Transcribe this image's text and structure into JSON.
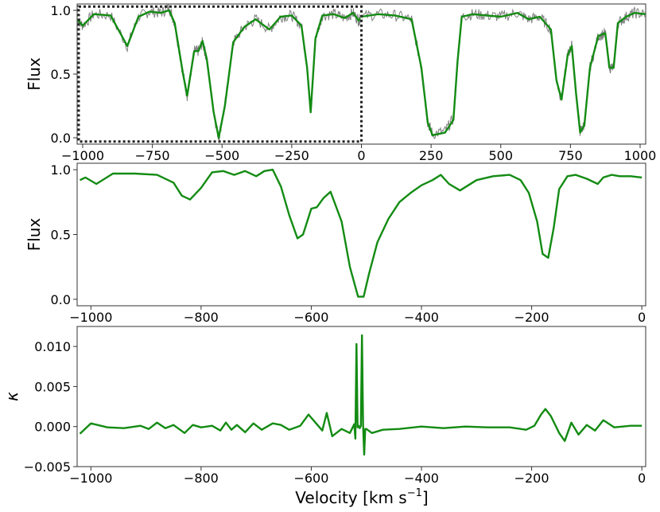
{
  "chart_data": [
    {
      "type": "line",
      "panel": "top",
      "ylabel": "Flux",
      "xlabel": "",
      "xlim": [
        -1020,
        1020
      ],
      "ylim": [
        -0.05,
        1.05
      ],
      "x_ticks": [
        -1000,
        -750,
        -500,
        -250,
        0,
        250,
        500,
        750,
        1000
      ],
      "x_tick_labels": [
        "−1000",
        "−750",
        "−500",
        "−250",
        "0",
        "250",
        "500",
        "750",
        "1000"
      ],
      "y_ticks": [
        0.0,
        0.5,
        1.0
      ],
      "y_tick_labels": [
        "0.0",
        "0.5",
        "1.0"
      ],
      "gap_at": 0,
      "highlight_box": {
        "x": [
          -1020,
          0
        ],
        "y": [
          -0.03,
          1.03
        ],
        "style": "dotted"
      },
      "series": [
        {
          "role": "data",
          "color": "#808080",
          "x": [
            -1020,
            -1000,
            -960,
            -900,
            -840,
            -800,
            -760,
            -720,
            -690,
            -670,
            -640,
            -625,
            -600,
            -585,
            -570,
            -555,
            -530,
            -512,
            -490,
            -460,
            -420,
            -380,
            -330,
            -290,
            -250,
            -215,
            -195,
            -182,
            -165,
            -140,
            -100,
            -60,
            -30,
            -10,
            0,
            60,
            120,
            180,
            215,
            238,
            255,
            300,
            330,
            345,
            360,
            400,
            450,
            500,
            560,
            600,
            640,
            680,
            700,
            718,
            740,
            755,
            770,
            785,
            800,
            820,
            850,
            875,
            890,
            905,
            920,
            950,
            980,
            1020
          ],
          "y": [
            0.93,
            0.88,
            0.97,
            0.96,
            0.72,
            0.95,
            0.99,
            0.98,
            1.02,
            0.9,
            0.5,
            0.33,
            0.68,
            0.68,
            0.75,
            0.62,
            0.2,
            0.0,
            0.25,
            0.75,
            0.87,
            0.93,
            0.85,
            0.95,
            0.96,
            0.88,
            0.55,
            0.2,
            0.78,
            0.96,
            0.97,
            0.94,
            0.98,
            0.92,
            0.95,
            0.97,
            0.96,
            0.93,
            0.55,
            0.12,
            0.03,
            0.05,
            0.15,
            0.6,
            0.95,
            0.97,
            0.96,
            0.95,
            0.98,
            0.93,
            0.95,
            0.85,
            0.45,
            0.3,
            0.65,
            0.72,
            0.35,
            0.05,
            0.1,
            0.55,
            0.8,
            0.82,
            0.55,
            0.55,
            0.9,
            0.95,
            0.98,
            0.97
          ]
        },
        {
          "role": "model",
          "color": "#138b13",
          "x": [
            -1020,
            -1000,
            -960,
            -900,
            -840,
            -800,
            -760,
            -720,
            -690,
            -670,
            -640,
            -625,
            -600,
            -585,
            -570,
            -555,
            -530,
            -512,
            -490,
            -460,
            -420,
            -380,
            -330,
            -290,
            -250,
            -215,
            -195,
            -182,
            -165,
            -140,
            -100,
            -60,
            -30,
            -10,
            0,
            60,
            120,
            180,
            215,
            238,
            255,
            300,
            330,
            345,
            360,
            400,
            450,
            500,
            560,
            600,
            640,
            680,
            700,
            718,
            740,
            755,
            770,
            785,
            800,
            820,
            850,
            875,
            890,
            905,
            920,
            950,
            980,
            1020
          ],
          "y": [
            0.93,
            0.88,
            0.97,
            0.96,
            0.72,
            0.95,
            0.99,
            0.98,
            1.0,
            0.9,
            0.5,
            0.33,
            0.68,
            0.68,
            0.76,
            0.62,
            0.2,
            0.0,
            0.25,
            0.75,
            0.87,
            0.93,
            0.85,
            0.95,
            0.96,
            0.88,
            0.55,
            0.2,
            0.78,
            0.96,
            0.97,
            0.94,
            0.98,
            0.92,
            0.95,
            0.97,
            0.96,
            0.93,
            0.55,
            0.12,
            0.02,
            0.04,
            0.14,
            0.6,
            0.95,
            0.97,
            0.96,
            0.95,
            0.98,
            0.93,
            0.95,
            0.85,
            0.45,
            0.3,
            0.65,
            0.72,
            0.35,
            0.04,
            0.1,
            0.55,
            0.8,
            0.82,
            0.55,
            0.55,
            0.9,
            0.95,
            0.98,
            0.97
          ]
        }
      ]
    },
    {
      "type": "line",
      "panel": "middle",
      "ylabel": "Flux",
      "xlabel": "",
      "xlim": [
        -1025,
        7
      ],
      "ylim": [
        -0.05,
        1.05
      ],
      "x_ticks": [
        -1000,
        -800,
        -600,
        -400,
        -200,
        0
      ],
      "x_tick_labels": [
        "−1000",
        "−800",
        "−600",
        "−400",
        "−200",
        "0"
      ],
      "y_ticks": [
        0.0,
        0.5,
        1.0
      ],
      "y_tick_labels": [
        "0.0",
        "0.5",
        "1.0"
      ],
      "series": [
        {
          "role": "model",
          "color": "#138b13",
          "x": [
            -1020,
            -1010,
            -990,
            -960,
            -920,
            -880,
            -850,
            -835,
            -820,
            -800,
            -780,
            -760,
            -740,
            -720,
            -700,
            -685,
            -670,
            -655,
            -640,
            -625,
            -615,
            -600,
            -590,
            -578,
            -565,
            -545,
            -530,
            -515,
            -505,
            -495,
            -480,
            -460,
            -440,
            -420,
            -400,
            -380,
            -365,
            -350,
            -330,
            -300,
            -270,
            -240,
            -220,
            -205,
            -190,
            -180,
            -170,
            -160,
            -150,
            -135,
            -120,
            -100,
            -80,
            -70,
            -55,
            -40,
            -20,
            0
          ],
          "y": [
            0.92,
            0.94,
            0.89,
            0.97,
            0.97,
            0.96,
            0.9,
            0.8,
            0.77,
            0.86,
            0.98,
            0.99,
            0.96,
            0.99,
            0.95,
            0.99,
            1.0,
            0.87,
            0.65,
            0.47,
            0.5,
            0.7,
            0.71,
            0.78,
            0.83,
            0.6,
            0.25,
            0.02,
            0.02,
            0.2,
            0.44,
            0.62,
            0.75,
            0.82,
            0.88,
            0.92,
            0.96,
            0.89,
            0.84,
            0.92,
            0.95,
            0.96,
            0.92,
            0.82,
            0.6,
            0.35,
            0.32,
            0.55,
            0.85,
            0.95,
            0.96,
            0.93,
            0.89,
            0.94,
            0.96,
            0.95,
            0.95,
            0.94
          ]
        }
      ]
    },
    {
      "type": "line",
      "panel": "bottom",
      "ylabel": "κ",
      "xlabel": "Velocity [km s$^{-1}$]",
      "xlabel_parts": {
        "main": "Velocity [km s",
        "sup": "−1",
        "close": "]"
      },
      "xlim": [
        -1025,
        7
      ],
      "ylim": [
        -0.005,
        0.0125
      ],
      "x_ticks": [
        -1000,
        -800,
        -600,
        -400,
        -200,
        0
      ],
      "x_tick_labels": [
        "−1000",
        "−800",
        "−600",
        "−400",
        "−200",
        "0"
      ],
      "y_ticks": [
        -0.005,
        0.0,
        0.005,
        0.01
      ],
      "y_tick_labels": [
        "−0.005",
        "0.000",
        "0.005",
        "0.010"
      ],
      "series": [
        {
          "role": "model",
          "color": "#138b13",
          "x": [
            -1020,
            -1000,
            -970,
            -940,
            -910,
            -895,
            -880,
            -865,
            -850,
            -830,
            -815,
            -800,
            -780,
            -765,
            -755,
            -745,
            -735,
            -720,
            -705,
            -690,
            -670,
            -655,
            -640,
            -620,
            -605,
            -590,
            -580,
            -572,
            -562,
            -545,
            -530,
            -522,
            -520,
            -518,
            -516,
            -514,
            -512,
            -510,
            -508,
            -506,
            -504,
            -502,
            -500,
            -490,
            -470,
            -440,
            -400,
            -360,
            -320,
            -280,
            -240,
            -210,
            -195,
            -183,
            -175,
            -165,
            -150,
            -140,
            -128,
            -115,
            -100,
            -85,
            -70,
            -50,
            -20,
            0
          ],
          "y": [
            -0.0009,
            0.0004,
            -0.0001,
            -0.0002,
            0.0001,
            -0.0003,
            0.0005,
            -0.0002,
            0.0002,
            -0.0008,
            0.0002,
            -0.0001,
            0.0001,
            -0.0005,
            0.0005,
            -0.0004,
            0.0002,
            -0.0007,
            0.0004,
            -0.0004,
            0.0004,
            0.0002,
            -0.0004,
            0.0001,
            0.0015,
            0.0003,
            -0.0005,
            0.0017,
            -0.0012,
            -0.0003,
            -0.0008,
            0.0003,
            -0.0015,
            0.0103,
            -0.0001,
            0.0001,
            -0.0002,
            0.0001,
            0.0114,
            0.0002,
            -0.0035,
            -0.0003,
            -0.0003,
            -0.0008,
            -0.0004,
            -0.0003,
            0.0,
            -0.0002,
            0.0,
            -0.0001,
            -0.0001,
            -0.0004,
            0.0001,
            0.0015,
            0.0022,
            0.0013,
            -0.0008,
            -0.0018,
            0.0005,
            -0.001,
            0.0002,
            -0.0005,
            0.0008,
            -0.0001,
            0.0001,
            0.0001
          ]
        }
      ]
    }
  ]
}
